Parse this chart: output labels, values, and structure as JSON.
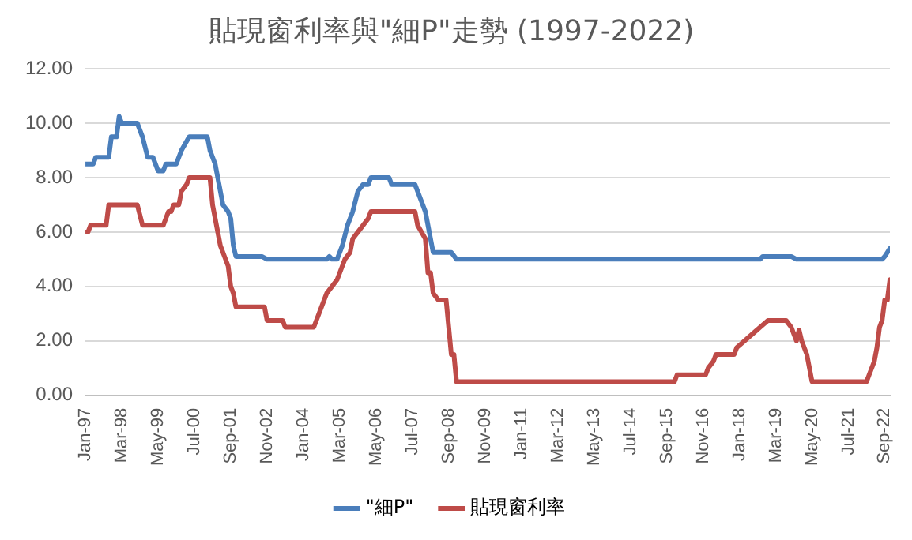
{
  "chart_data": {
    "type": "line",
    "title": "貼現窗利率與\"細P\"走勢 (1997-2022)",
    "legend": "bottom",
    "grid": "y",
    "marker": "none",
    "line_style": "solid",
    "xlim": [
      "1997-01",
      "2022-11"
    ],
    "xticks": [
      {
        "value": "1997-01",
        "label": "Jan-97"
      },
      {
        "value": "1998-03",
        "label": "Mar-98"
      },
      {
        "value": "1999-05",
        "label": "May-99"
      },
      {
        "value": "2000-07",
        "label": "Jul-00"
      },
      {
        "value": "2001-09",
        "label": "Sep-01"
      },
      {
        "value": "2002-11",
        "label": "Nov-02"
      },
      {
        "value": "2004-01",
        "label": "Jan-04"
      },
      {
        "value": "2005-03",
        "label": "Mar-05"
      },
      {
        "value": "2006-05",
        "label": "May-06"
      },
      {
        "value": "2007-07",
        "label": "Jul-07"
      },
      {
        "value": "2008-09",
        "label": "Sep-08"
      },
      {
        "value": "2009-11",
        "label": "Nov-09"
      },
      {
        "value": "2011-01",
        "label": "Jan-11"
      },
      {
        "value": "2012-03",
        "label": "Mar-12"
      },
      {
        "value": "2013-05",
        "label": "May-13"
      },
      {
        "value": "2014-07",
        "label": "Jul-14"
      },
      {
        "value": "2015-09",
        "label": "Sep-15"
      },
      {
        "value": "2016-11",
        "label": "Nov-16"
      },
      {
        "value": "2018-01",
        "label": "Jan-18"
      },
      {
        "value": "2019-03",
        "label": "Mar-19"
      },
      {
        "value": "2020-05",
        "label": "May-20"
      },
      {
        "value": "2021-07",
        "label": "Jul-21"
      },
      {
        "value": "2022-09",
        "label": "Sep-22"
      }
    ],
    "ylim": [
      0,
      12
    ],
    "yticks": [
      {
        "value": 0,
        "label": "0.00"
      },
      {
        "value": 2,
        "label": "2.00"
      },
      {
        "value": 4,
        "label": "4.00"
      },
      {
        "value": 6,
        "label": "6.00"
      },
      {
        "value": 8,
        "label": "8.00"
      },
      {
        "value": 10,
        "label": "10.00"
      },
      {
        "value": 12,
        "label": "12.00"
      }
    ],
    "series": [
      {
        "name": "\"細P\"",
        "color": "#4a7ebb",
        "x": [
          "1997-01",
          "1997-04",
          "1997-05",
          "1997-10",
          "1997-11",
          "1998-01",
          "1998-02",
          "1998-03",
          "1998-09",
          "1998-11",
          "1999-01",
          "1999-03",
          "1999-05",
          "1999-07",
          "1999-08",
          "1999-12",
          "2000-02",
          "2000-05",
          "2000-12",
          "2001-01",
          "2001-03",
          "2001-05",
          "2001-06",
          "2001-08",
          "2001-09",
          "2001-10",
          "2001-11",
          "2002-09",
          "2002-11",
          "2004-10",
          "2004-11",
          "2004-12",
          "2005-02",
          "2005-04",
          "2005-06",
          "2005-08",
          "2005-10",
          "2005-12",
          "2006-02",
          "2006-03",
          "2006-10",
          "2006-11",
          "2007-08",
          "2007-10",
          "2007-12",
          "2008-02",
          "2008-03",
          "2008-10",
          "2008-12",
          "2018-09",
          "2018-10",
          "2019-09",
          "2019-11",
          "2022-08",
          "2022-09",
          "2022-10",
          "2022-11"
        ],
        "values": [
          8.5,
          8.5,
          8.75,
          8.75,
          9.5,
          9.5,
          10.25,
          10,
          10,
          9.5,
          8.75,
          8.75,
          8.25,
          8.25,
          8.5,
          8.5,
          9,
          9.5,
          9.5,
          9,
          8.5,
          7.5,
          7,
          6.75,
          6.5,
          5.5,
          5.1,
          5.1,
          5,
          5,
          5.1,
          5,
          5,
          5.5,
          6.25,
          6.75,
          7.5,
          7.75,
          7.75,
          8,
          8,
          7.75,
          7.75,
          7.25,
          6.75,
          5.75,
          5.25,
          5.25,
          5,
          5,
          5.1,
          5.1,
          5,
          5,
          5.1,
          5.25,
          5.4
        ]
      },
      {
        "name": "貼現窗利率",
        "color": "#be4b48",
        "x": [
          "1997-01",
          "1997-02",
          "1997-03",
          "1997-09",
          "1997-10",
          "1998-09",
          "1998-11",
          "1999-07",
          "1999-08",
          "1999-09",
          "1999-10",
          "1999-11",
          "2000-01",
          "2000-02",
          "2000-04",
          "2000-05",
          "2001-01",
          "2001-02",
          "2001-04",
          "2001-05",
          "2001-06",
          "2001-08",
          "2001-09",
          "2001-10",
          "2001-11",
          "2002-10",
          "2002-11",
          "2003-05",
          "2003-06",
          "2004-05",
          "2004-07",
          "2004-08",
          "2004-10",
          "2004-12",
          "2005-02",
          "2005-04",
          "2005-05",
          "2005-07",
          "2005-08",
          "2005-10",
          "2005-12",
          "2006-02",
          "2006-03",
          "2007-08",
          "2007-09",
          "2007-12",
          "2008-01",
          "2008-02",
          "2008-03",
          "2008-05",
          "2008-08",
          "2008-10",
          "2008-11",
          "2008-12",
          "2015-12",
          "2016-01",
          "2016-12",
          "2017-01",
          "2017-03",
          "2017-04",
          "2017-11",
          "2017-12",
          "2018-03",
          "2018-06",
          "2018-09",
          "2018-12",
          "2019-07",
          "2019-09",
          "2019-10",
          "2019-11",
          "2019-12",
          "2020-01",
          "2020-03",
          "2020-04",
          "2020-05",
          "2022-02",
          "2022-03",
          "2022-05",
          "2022-06",
          "2022-07",
          "2022-08",
          "2022-09",
          "2022-10",
          "2022-11"
        ],
        "values": [
          6,
          6,
          6.25,
          6.25,
          7,
          7,
          6.25,
          6.25,
          6.5,
          6.75,
          6.75,
          7,
          7,
          7.5,
          7.75,
          8,
          8,
          7,
          6,
          5.5,
          5.25,
          4.75,
          4,
          3.75,
          3.25,
          3.25,
          2.75,
          2.75,
          2.5,
          2.5,
          3,
          3.25,
          3.75,
          4,
          4.25,
          4.75,
          5,
          5.25,
          5.75,
          6,
          6.25,
          6.5,
          6.75,
          6.75,
          6.25,
          5.75,
          4.5,
          4.5,
          3.75,
          3.5,
          3.5,
          1.5,
          1.5,
          0.5,
          0.5,
          0.75,
          0.75,
          1,
          1.25,
          1.5,
          1.5,
          1.75,
          2,
          2.25,
          2.5,
          2.75,
          2.75,
          2.5,
          2.25,
          2,
          2.4,
          2,
          1.5,
          1,
          0.5,
          0.5,
          0.75,
          1.25,
          1.75,
          2.5,
          2.75,
          3.5,
          3.5,
          4.25
        ]
      }
    ]
  }
}
